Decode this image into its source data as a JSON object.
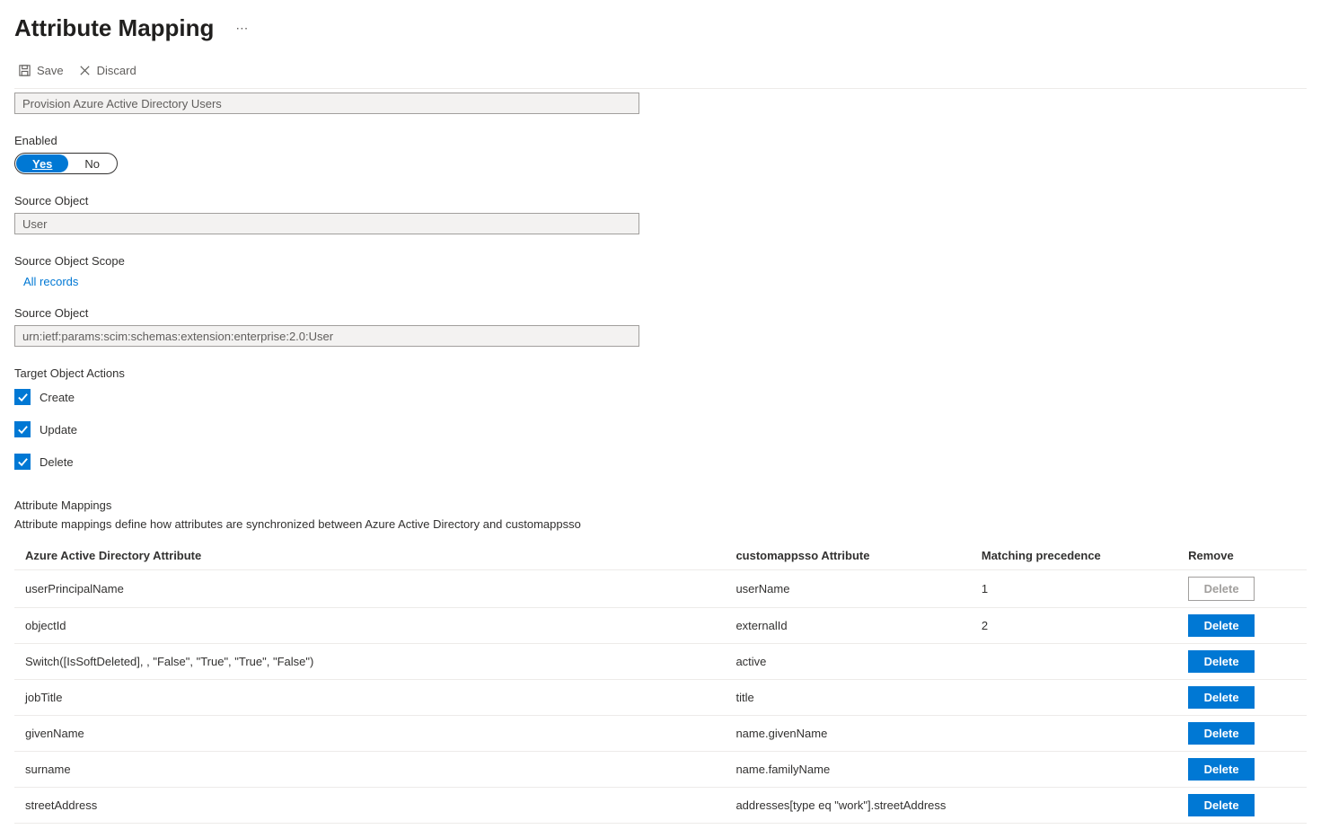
{
  "header": {
    "title": "Attribute Mapping"
  },
  "toolbar": {
    "save_label": "Save",
    "discard_label": "Discard"
  },
  "name_input": {
    "value": "Provision Azure Active Directory Users"
  },
  "enabled": {
    "label": "Enabled",
    "yes": "Yes",
    "no": "No"
  },
  "source_object1": {
    "label": "Source Object",
    "value": "User"
  },
  "source_scope": {
    "label": "Source Object Scope",
    "link": "All records"
  },
  "source_object2": {
    "label": "Source Object",
    "value": "urn:ietf:params:scim:schemas:extension:enterprise:2.0:User"
  },
  "target_actions": {
    "label": "Target Object Actions",
    "items": [
      "Create",
      "Update",
      "Delete"
    ]
  },
  "mappings": {
    "title": "Attribute Mappings",
    "description": "Attribute mappings define how attributes are synchronized between Azure Active Directory and customappsso",
    "columns": {
      "aad": "Azure Active Directory Attribute",
      "custom": "customappsso Attribute",
      "match": "Matching precedence",
      "remove": "Remove"
    },
    "delete_label": "Delete",
    "rows": [
      {
        "aad": "userPrincipalName",
        "custom": "userName",
        "match": "1",
        "disabled": true
      },
      {
        "aad": "objectId",
        "custom": "externalId",
        "match": "2",
        "disabled": false
      },
      {
        "aad": "Switch([IsSoftDeleted], , \"False\", \"True\", \"True\", \"False\")",
        "custom": "active",
        "match": "",
        "disabled": false
      },
      {
        "aad": "jobTitle",
        "custom": "title",
        "match": "",
        "disabled": false
      },
      {
        "aad": "givenName",
        "custom": "name.givenName",
        "match": "",
        "disabled": false
      },
      {
        "aad": "surname",
        "custom": "name.familyName",
        "match": "",
        "disabled": false
      },
      {
        "aad": "streetAddress",
        "custom": "addresses[type eq \"work\"].streetAddress",
        "match": "",
        "disabled": false
      }
    ]
  }
}
